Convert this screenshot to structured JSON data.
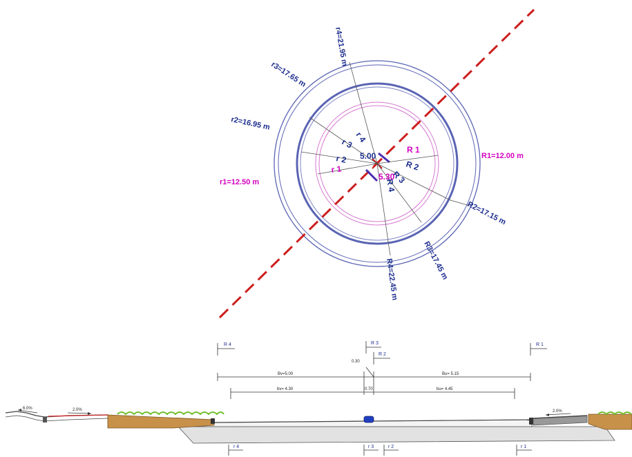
{
  "plan_view": {
    "colors": {
      "axis": "#cc1e1e",
      "outer": "#5a64b4",
      "outer_inner": "#2e3a9a",
      "inner_pink": "#d77ad0",
      "magenta": "#d400c0",
      "dim_blue": "#1d2e8e",
      "navy": "#0f2a85"
    },
    "labels": {
      "r1": "r1=12.50 m",
      "r2": "r2=16.95 m",
      "r3": "r3=17.65 m",
      "r4": "r4=21.95 m",
      "R1": "R1=12.00 m",
      "R2": "R2=17.15 m",
      "R3": "R3=17.45 m",
      "R4": "R4=22.45 m",
      "inner_r1": "r 1",
      "inner_r2": "r 2",
      "inner_r3": "r 3",
      "inner_r4": "r 4",
      "inner_R1": "R 1",
      "inner_R2": "R 2",
      "inner_R3": "R 3",
      "inner_R4": "R 4",
      "offset_500": "5.00",
      "offset_530": "5.30"
    }
  },
  "section_view": {
    "markers_top": {
      "R4": "R 4",
      "R3": "R 3",
      "R2": "R 2",
      "R1": "R 1"
    },
    "markers_bottom": {
      "r4": "r 4",
      "r3": "r 3",
      "r2": "r 2",
      "r1": "r 1"
    },
    "dims": {
      "d030": "0.30",
      "Bv": "Bv=5.00",
      "Bu": "Bu= 5.15",
      "bv": "bv= 4.30",
      "d070": "0.70",
      "bu": "bu= 4.45"
    },
    "slopes": {
      "left_outer": "6.0%",
      "left_inner": "2.0%",
      "right_inner": "2.0%"
    },
    "colors": {
      "soil": "#c8914a",
      "gravel": "#e2e2e2",
      "grass": "#6fbf2a",
      "line": "#333333",
      "red": "#cc1e1e",
      "blue": "#1f3fbf"
    }
  }
}
